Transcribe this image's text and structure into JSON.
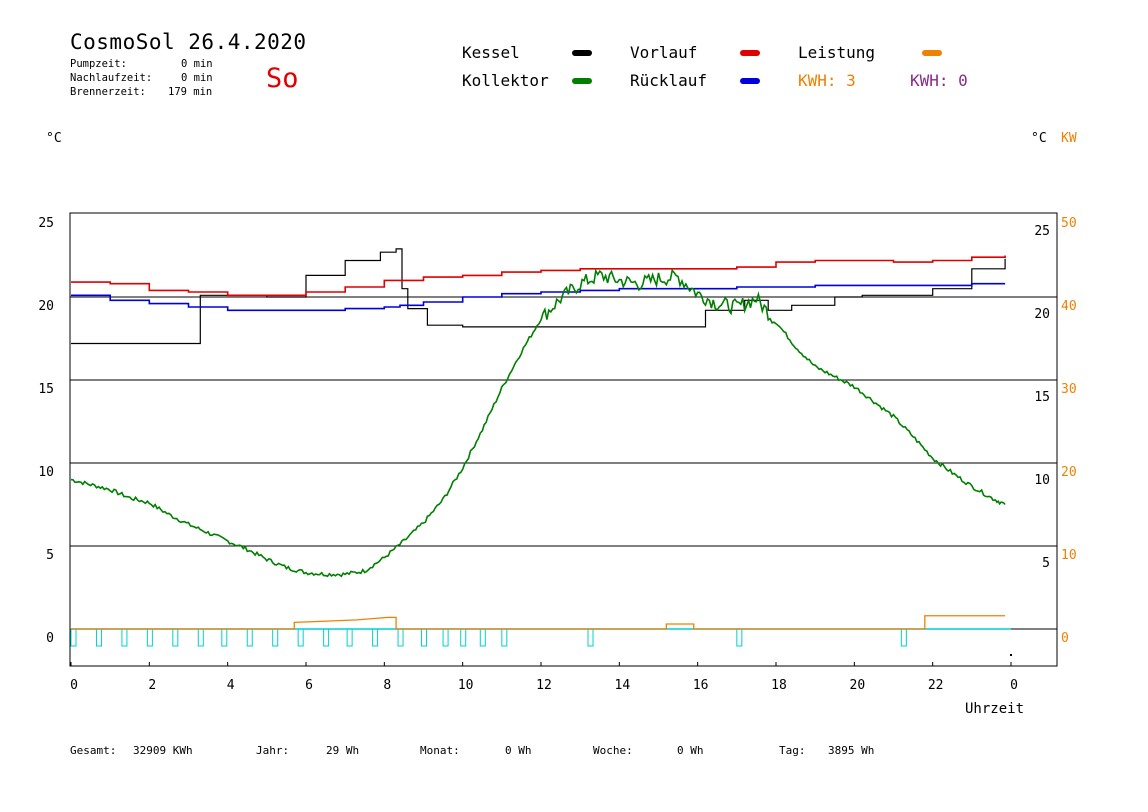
{
  "header": {
    "title": "CosmoSol 26.4.2020",
    "day": "So",
    "pumpzeit_label": "Pumpzeit:",
    "pumpzeit_value": "0 min",
    "nachlaufzeit_label": "Nachlaufzeit:",
    "nachlaufzeit_value": "0 min",
    "brennerzeit_label": "Brennerzeit:",
    "brennerzeit_value": "179 min"
  },
  "legend": {
    "kessel": {
      "label": "Kessel",
      "color": "#000000"
    },
    "kollektor": {
      "label": "Kollektor",
      "color": "#007f00"
    },
    "vorlauf": {
      "label": "Vorlauf",
      "color": "#e00000"
    },
    "ruecklauf": {
      "label": "Rücklauf",
      "color": "#0000dd"
    },
    "leistung": {
      "label": "Leistung",
      "color": "#f08000"
    },
    "kwh_orange": "KWH: 3",
    "kwh_purple": "KWH: 0",
    "kwh_purple_color": "#8b2a8b",
    "pump_color": "#00d0d0"
  },
  "axes": {
    "left_unit": "°C",
    "right_unit_c": "°C",
    "right_unit_kw": "KW",
    "xlabel": "Uhrzeit"
  },
  "footer": {
    "gesamt_label": "Gesamt:",
    "gesamt_value": "32909 KWh",
    "jahr_label": "Jahr:",
    "jahr_value": "29 Wh",
    "monat_label": "Monat:",
    "monat_value": "0 Wh",
    "woche_label": "Woche:",
    "woche_value": "0 Wh",
    "tag_label": "Tag:",
    "tag_value": "3895 Wh"
  },
  "chart_data": {
    "type": "line",
    "x_range": [
      0,
      24
    ],
    "left_ylim": [
      -2,
      25.5
    ],
    "x_ticks": [
      "0",
      "2",
      "4",
      "6",
      "8",
      "10",
      "12",
      "14",
      "16",
      "18",
      "20",
      "22",
      "0"
    ],
    "left_ticks": [
      "0",
      "5",
      "10",
      "15",
      "20",
      "25"
    ],
    "right_c_ticks": [
      "5",
      "10",
      "15",
      "20",
      "25"
    ],
    "right_kw_ticks": [
      "0",
      "10",
      "20",
      "30",
      "40",
      "50"
    ],
    "grid_y": [
      0,
      5,
      10,
      15,
      20
    ],
    "series": [
      {
        "name": "Kessel",
        "key": "kessel",
        "x": [
          0,
          3.3,
          5.0,
          6.0,
          7.0,
          7.9,
          8.3,
          8.45,
          8.6,
          9.1,
          10,
          12,
          15,
          15.3,
          16.2,
          17.2,
          17.8,
          18.4,
          19.5,
          20.2,
          21.0,
          21.4,
          22.0,
          23.0,
          23.85
        ],
        "y": [
          17.2,
          20.1,
          20.0,
          21.3,
          22.2,
          22.7,
          22.9,
          20.5,
          19.3,
          18.3,
          18.2,
          18.2,
          18.2,
          18.2,
          19.2,
          19.8,
          19.2,
          19.5,
          20.0,
          20.1,
          20.1,
          20.1,
          20.5,
          21.7,
          22.3
        ]
      },
      {
        "name": "Vorlauf",
        "key": "vorlauf",
        "x": [
          0,
          1,
          2,
          3,
          4,
          5,
          6,
          7,
          8,
          9,
          10,
          11,
          12,
          13,
          14,
          15,
          16,
          17,
          18,
          19,
          20,
          21,
          22,
          23,
          23.85
        ],
        "y": [
          20.9,
          20.8,
          20.4,
          20.3,
          20.1,
          20.1,
          20.3,
          20.6,
          21.0,
          21.2,
          21.3,
          21.5,
          21.6,
          21.7,
          21.7,
          21.7,
          21.7,
          21.8,
          22.1,
          22.2,
          22.2,
          22.1,
          22.2,
          22.4,
          22.5
        ]
      },
      {
        "name": "Rücklauf",
        "key": "ruecklauf",
        "x": [
          0,
          1,
          2,
          3,
          4,
          5,
          6,
          7,
          8,
          8.4,
          9,
          10,
          11,
          12,
          13,
          14,
          15,
          16,
          17,
          18,
          19,
          20,
          21,
          22,
          23,
          23.85
        ],
        "y": [
          20.1,
          19.8,
          19.6,
          19.4,
          19.2,
          19.2,
          19.2,
          19.3,
          19.4,
          19.5,
          19.7,
          20.0,
          20.2,
          20.3,
          20.4,
          20.5,
          20.5,
          20.5,
          20.6,
          20.6,
          20.7,
          20.7,
          20.7,
          20.7,
          20.8,
          20.8
        ]
      },
      {
        "name": "Kollektor",
        "key": "kollektor",
        "x": [
          0,
          0.5,
          1.0,
          1.5,
          2.0,
          2.5,
          3.0,
          3.5,
          4.0,
          4.5,
          5.0,
          5.5,
          6.0,
          6.5,
          7.0,
          7.5,
          8.0,
          8.5,
          9.0,
          9.5,
          10.0,
          10.5,
          11.0,
          11.5,
          12.0,
          12.5,
          13.0,
          13.5,
          14.0,
          14.5,
          15.0,
          15.5,
          16.0,
          16.5,
          17.0,
          17.5,
          18.0,
          18.5,
          19.0,
          19.5,
          20.0,
          20.5,
          21.0,
          21.5,
          22.0,
          22.5,
          23.0,
          23.5,
          23.85
        ],
        "y": [
          9.0,
          8.7,
          8.4,
          7.9,
          7.6,
          6.9,
          6.3,
          5.8,
          5.3,
          4.8,
          4.2,
          3.7,
          3.4,
          3.3,
          3.3,
          3.5,
          4.3,
          5.3,
          6.4,
          7.8,
          9.7,
          12.0,
          14.5,
          16.7,
          18.7,
          19.9,
          20.8,
          21.3,
          21.0,
          20.8,
          21.1,
          21.2,
          20.2,
          19.6,
          19.4,
          19.9,
          18.5,
          17.0,
          15.8,
          15.2,
          14.6,
          13.7,
          12.8,
          11.6,
          10.3,
          9.4,
          8.6,
          7.9,
          7.5
        ]
      }
    ],
    "leistung": {
      "name": "Leistung",
      "x": [
        0,
        5.7,
        5.7,
        6.3,
        7.3,
        8.1,
        8.3,
        8.3,
        15.2,
        15.2,
        15.9,
        15.9,
        21.8,
        21.8,
        23.85
      ],
      "y_kw": [
        0,
        0,
        0.8,
        0.9,
        1.1,
        1.4,
        1.4,
        0,
        0,
        0.6,
        0.6,
        0,
        0,
        1.6,
        1.6
      ]
    },
    "pump_pulses_h": [
      0.0,
      0.65,
      1.3,
      1.95,
      2.6,
      3.25,
      3.85,
      4.5,
      5.15,
      5.8,
      6.45,
      7.05,
      7.7,
      8.35,
      8.95,
      9.5,
      9.95,
      10.45,
      11.0,
      13.2,
      17.0,
      21.2
    ]
  }
}
